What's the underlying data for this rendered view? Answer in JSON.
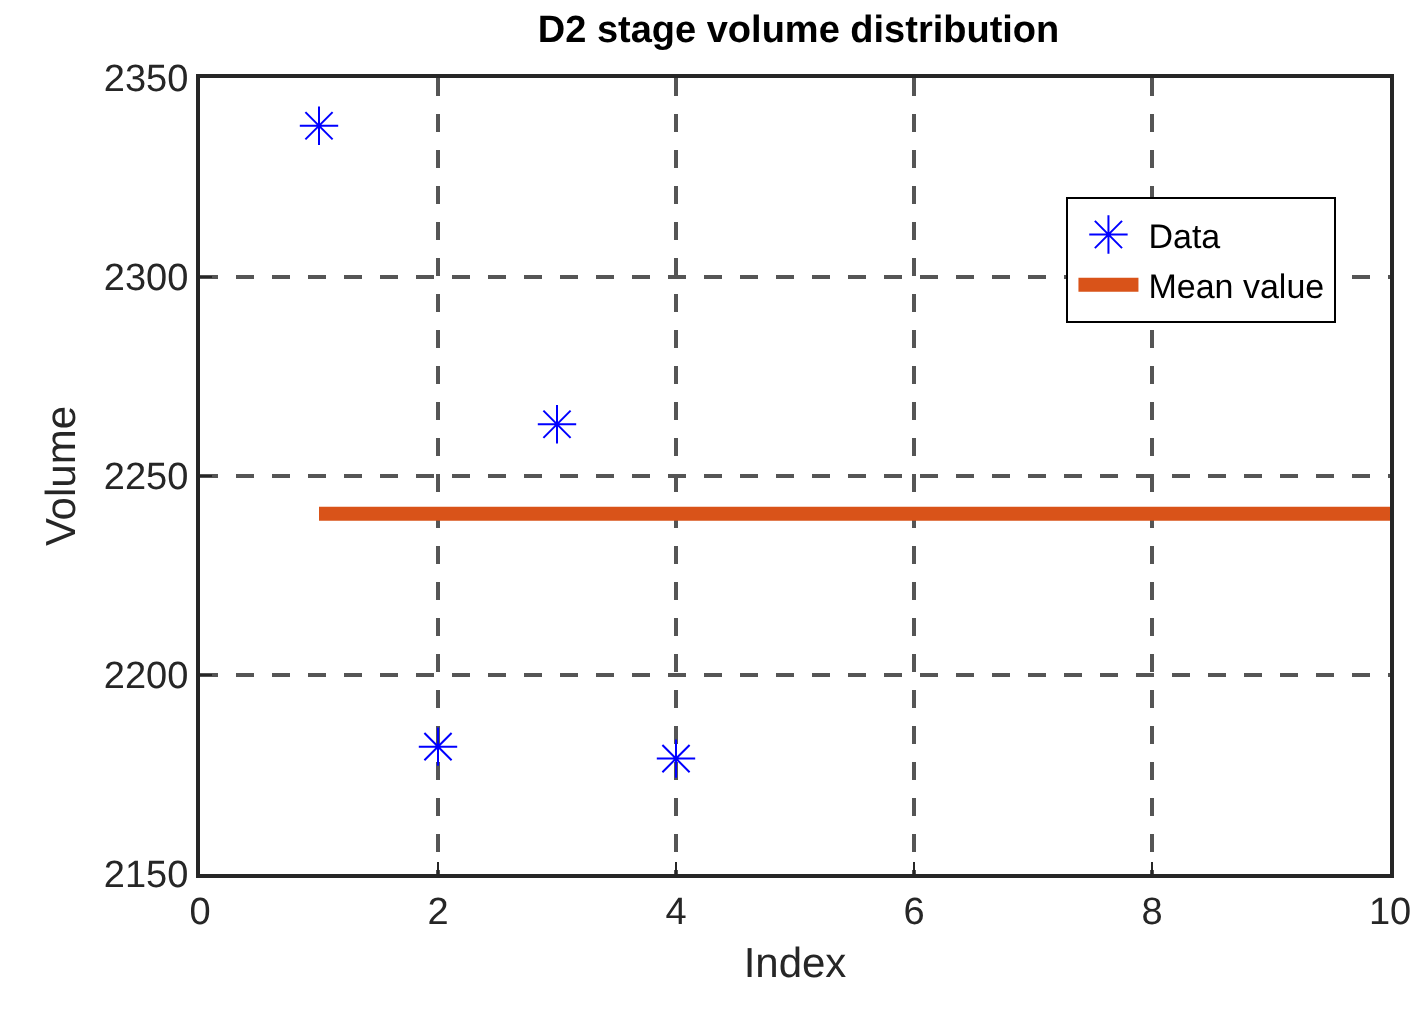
{
  "chart_data": {
    "type": "scatter",
    "title": "D2 stage volume distribution",
    "xlabel": "Index",
    "ylabel": "Volume",
    "xlim": [
      0,
      10
    ],
    "xticks": [
      0,
      2,
      4,
      6,
      8,
      10
    ],
    "ylim": [
      2150,
      2350
    ],
    "yticks": [
      2150,
      2200,
      2250,
      2300,
      2350
    ],
    "grid": true,
    "legend": "top right",
    "series": [
      {
        "name": "Data",
        "marker": "cross",
        "color": "#0000ff",
        "x": [
          1,
          2,
          3,
          4
        ],
        "values": [
          2338,
          2182,
          2263,
          2179
        ]
      },
      {
        "name": "Mean value",
        "type": "line",
        "marker": "none",
        "line_style": "solid",
        "color": "#d95319",
        "x": [
          1,
          10
        ],
        "values": [
          2240.5,
          2240.5
        ]
      }
    ]
  }
}
